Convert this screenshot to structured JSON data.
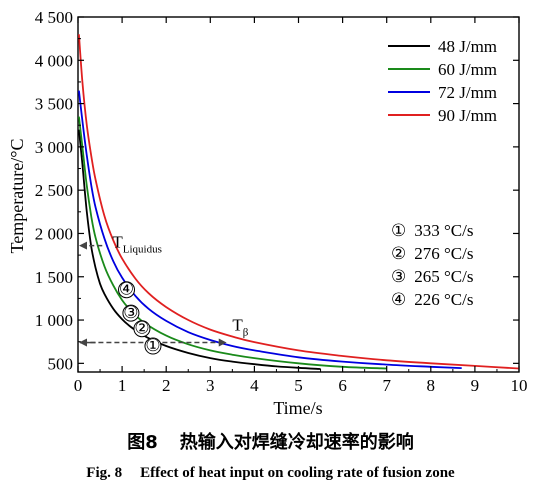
{
  "chart_data": {
    "type": "line",
    "xlabel": "Time/s",
    "ylabel": "Temperature/°C",
    "xlim": [
      0,
      10
    ],
    "ylim": [
      400,
      4500
    ],
    "x_ticks": [
      "0",
      "1",
      "2",
      "3",
      "4",
      "5",
      "6",
      "7",
      "8",
      "9",
      "10"
    ],
    "y_ticks": [
      {
        "value": 500,
        "label": "500"
      },
      {
        "value": 1000,
        "label": "1 000"
      },
      {
        "value": 1500,
        "label": "1 500"
      },
      {
        "value": 2000,
        "label": "2 000"
      },
      {
        "value": 2500,
        "label": "2 500"
      },
      {
        "value": 3000,
        "label": "3 000"
      },
      {
        "value": 3500,
        "label": "3 500"
      },
      {
        "value": 4000,
        "label": "4 000"
      },
      {
        "value": 4500,
        "label": "4 500"
      }
    ],
    "grid": false,
    "legend_position": "top-right",
    "series": [
      {
        "name": "48 J/mm",
        "color": "#000000",
        "points": [
          [
            0.02,
            3200
          ],
          [
            0.1,
            2800
          ],
          [
            0.2,
            2250
          ],
          [
            0.3,
            1850
          ],
          [
            0.4,
            1600
          ],
          [
            0.5,
            1420
          ],
          [
            0.6,
            1300
          ],
          [
            0.8,
            1130
          ],
          [
            1.0,
            1010
          ],
          [
            1.2,
            920
          ],
          [
            1.4,
            850
          ],
          [
            1.6,
            790
          ],
          [
            2.0,
            700
          ],
          [
            2.5,
            620
          ],
          [
            3.0,
            560
          ],
          [
            3.5,
            520
          ],
          [
            4.0,
            490
          ],
          [
            4.5,
            465
          ],
          [
            5.0,
            448
          ],
          [
            5.5,
            435
          ]
        ]
      },
      {
        "name": "60 J/mm",
        "color": "#1a8a1a",
        "points": [
          [
            0.02,
            3350
          ],
          [
            0.1,
            3000
          ],
          [
            0.2,
            2550
          ],
          [
            0.3,
            2200
          ],
          [
            0.4,
            1950
          ],
          [
            0.6,
            1620
          ],
          [
            0.8,
            1400
          ],
          [
            1.0,
            1230
          ],
          [
            1.2,
            1110
          ],
          [
            1.5,
            970
          ],
          [
            2.0,
            820
          ],
          [
            2.5,
            720
          ],
          [
            3.0,
            650
          ],
          [
            3.5,
            600
          ],
          [
            4.0,
            560
          ],
          [
            5.0,
            500
          ],
          [
            6.0,
            460
          ],
          [
            7.0,
            440
          ]
        ]
      },
      {
        "name": "72 J/mm",
        "color": "#0000e0",
        "points": [
          [
            0.02,
            3650
          ],
          [
            0.1,
            3300
          ],
          [
            0.2,
            2900
          ],
          [
            0.3,
            2560
          ],
          [
            0.4,
            2300
          ],
          [
            0.6,
            1940
          ],
          [
            0.8,
            1680
          ],
          [
            1.0,
            1490
          ],
          [
            1.3,
            1280
          ],
          [
            1.6,
            1130
          ],
          [
            2.0,
            990
          ],
          [
            2.5,
            860
          ],
          [
            3.0,
            770
          ],
          [
            3.5,
            700
          ],
          [
            4.0,
            650
          ],
          [
            5.0,
            570
          ],
          [
            6.0,
            520
          ],
          [
            7.0,
            485
          ],
          [
            8.0,
            460
          ],
          [
            8.7,
            445
          ]
        ]
      },
      {
        "name": "90 J/mm",
        "color": "#e02020",
        "points": [
          [
            0.02,
            4300
          ],
          [
            0.1,
            3750
          ],
          [
            0.2,
            3250
          ],
          [
            0.3,
            2900
          ],
          [
            0.4,
            2620
          ],
          [
            0.6,
            2200
          ],
          [
            0.8,
            1920
          ],
          [
            1.0,
            1710
          ],
          [
            1.3,
            1480
          ],
          [
            1.6,
            1310
          ],
          [
            2.0,
            1150
          ],
          [
            2.5,
            1000
          ],
          [
            3.0,
            890
          ],
          [
            3.5,
            810
          ],
          [
            4.0,
            745
          ],
          [
            5.0,
            650
          ],
          [
            6.0,
            585
          ],
          [
            7.0,
            535
          ],
          [
            8.0,
            500
          ],
          [
            9.0,
            470
          ],
          [
            10.0,
            440
          ]
        ]
      }
    ],
    "annotations": {
      "t_liquidus": {
        "base": "T",
        "sub": "Liquidus",
        "value": 1860
      },
      "t_beta": {
        "base": "T",
        "sub": "β",
        "value": 740
      },
      "markers": [
        {
          "label": "①",
          "x": 1.7,
          "y": 700
        },
        {
          "label": "②",
          "x": 1.45,
          "y": 900
        },
        {
          "label": "③",
          "x": 1.2,
          "y": 1080
        },
        {
          "label": "④",
          "x": 1.1,
          "y": 1350
        }
      ],
      "rates": [
        {
          "marker": "①",
          "text": "333 °C/s"
        },
        {
          "marker": "②",
          "text": "276 °C/s"
        },
        {
          "marker": "③",
          "text": "265 °C/s"
        },
        {
          "marker": "④",
          "text": "226 °C/s"
        }
      ]
    }
  },
  "caption": {
    "zh_label": "图8",
    "zh_text": "热输入对焊缝冷却速率的影响",
    "en_label": "Fig. 8",
    "en_text": "Effect of heat input on cooling rate of fusion zone"
  }
}
